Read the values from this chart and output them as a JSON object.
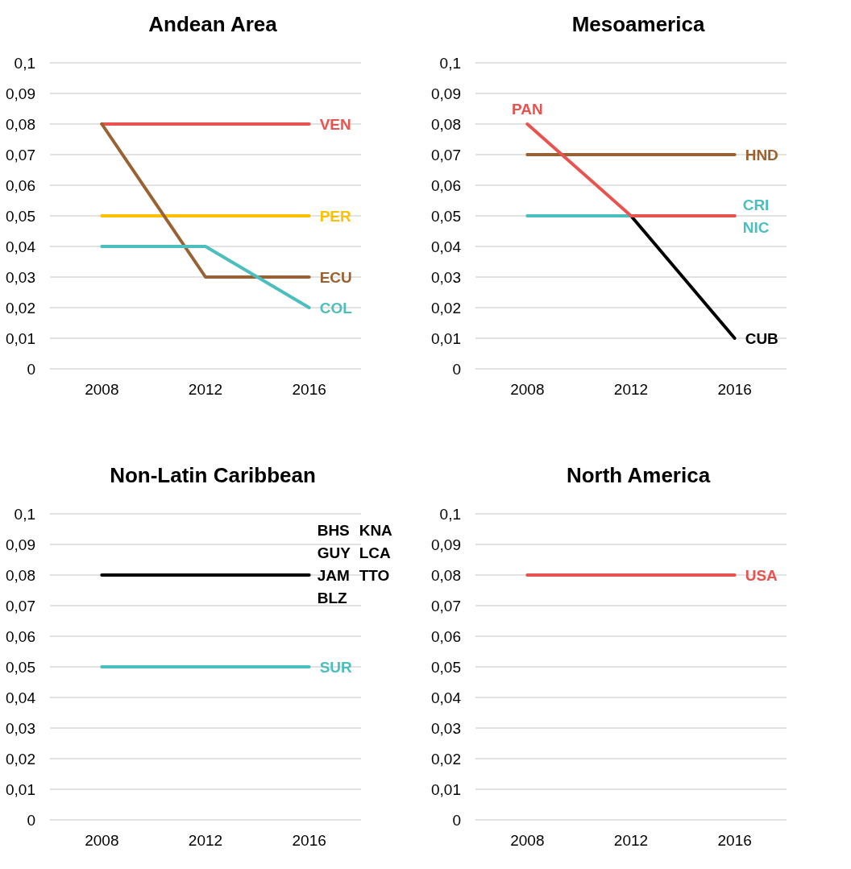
{
  "chart_data": [
    {
      "type": "line",
      "title": "Andean Area",
      "categories": [
        "2008",
        "2012",
        "2016"
      ],
      "ylim": [
        0,
        0.1
      ],
      "yticks": [
        {
          "value": 0,
          "label": "0"
        },
        {
          "value": 0.01,
          "label": "0,01"
        },
        {
          "value": 0.02,
          "label": "0,02"
        },
        {
          "value": 0.03,
          "label": "0,03"
        },
        {
          "value": 0.04,
          "label": "0,04"
        },
        {
          "value": 0.05,
          "label": "0,05"
        },
        {
          "value": 0.06,
          "label": "0,06"
        },
        {
          "value": 0.07,
          "label": "0,07"
        },
        {
          "value": 0.08,
          "label": "0,08"
        },
        {
          "value": 0.09,
          "label": "0,09"
        },
        {
          "value": 0.1,
          "label": "0,1"
        }
      ],
      "grid": "y",
      "series": [
        {
          "name": "VEN",
          "color": "#e8534f",
          "values": [
            0.08,
            0.08,
            0.08
          ]
        },
        {
          "name": "PER",
          "color": "#ffc000",
          "values": [
            0.05,
            0.05,
            0.05
          ]
        },
        {
          "name": "ECU",
          "color": "#9a6232",
          "values": [
            0.08,
            0.03,
            0.03
          ]
        },
        {
          "name": "COL",
          "color": "#4bbfbf",
          "values": [
            0.04,
            0.04,
            0.02
          ]
        }
      ]
    },
    {
      "type": "line",
      "title": "Mesoamerica",
      "categories": [
        "2008",
        "2012",
        "2016"
      ],
      "ylim": [
        0,
        0.1
      ],
      "yticks": [
        {
          "value": 0,
          "label": "0"
        },
        {
          "value": 0.01,
          "label": "0,01"
        },
        {
          "value": 0.02,
          "label": "0,02"
        },
        {
          "value": 0.03,
          "label": "0,03"
        },
        {
          "value": 0.04,
          "label": "0,04"
        },
        {
          "value": 0.05,
          "label": "0,05"
        },
        {
          "value": 0.06,
          "label": "0,06"
        },
        {
          "value": 0.07,
          "label": "0,07"
        },
        {
          "value": 0.08,
          "label": "0,08"
        },
        {
          "value": 0.09,
          "label": "0,09"
        },
        {
          "value": 0.1,
          "label": "0,1"
        }
      ],
      "grid": "y",
      "series": [
        {
          "name": "HND",
          "color": "#9a6232",
          "values": [
            0.07,
            0.07,
            0.07
          ]
        },
        {
          "name": "CUB",
          "color": "#000000",
          "values": [
            null,
            0.05,
            0.01
          ]
        },
        {
          "color": "#4bbfbf",
          "values": [
            0.05,
            0.05,
            0.05
          ]
        },
        {
          "name": "PAN",
          "color": "#e8534f",
          "values": [
            0.08,
            0.05,
            0.05
          ]
        }
      ],
      "annotations": [
        {
          "text": "CRI",
          "x": "2016",
          "y": 0.05
        },
        {
          "text": "NIC",
          "x": "2016",
          "y": 0.05
        }
      ]
    },
    {
      "type": "line",
      "title": "Non-Latin Caribbean",
      "categories": [
        "2008",
        "2012",
        "2016"
      ],
      "ylim": [
        0,
        0.1
      ],
      "yticks": [
        {
          "value": 0,
          "label": "0"
        },
        {
          "value": 0.01,
          "label": "0,01"
        },
        {
          "value": 0.02,
          "label": "0,02"
        },
        {
          "value": 0.03,
          "label": "0,03"
        },
        {
          "value": 0.04,
          "label": "0,04"
        },
        {
          "value": 0.05,
          "label": "0,05"
        },
        {
          "value": 0.06,
          "label": "0,06"
        },
        {
          "value": 0.07,
          "label": "0,07"
        },
        {
          "value": 0.08,
          "label": "0,08"
        },
        {
          "value": 0.09,
          "label": "0,09"
        },
        {
          "value": 0.1,
          "label": "0,1"
        }
      ],
      "grid": "y",
      "series": [
        {
          "color": "#000000",
          "values": [
            0.08,
            0.08,
            0.08
          ]
        },
        {
          "name": "SUR",
          "color": "#4bbfbf",
          "values": [
            0.05,
            0.05,
            0.05
          ]
        }
      ],
      "annotations": [
        "BHS",
        "KNA",
        "GUY",
        "LCA",
        "JAM",
        "TTO",
        "BLZ"
      ]
    },
    {
      "type": "line",
      "title": "North America",
      "categories": [
        "2008",
        "2012",
        "2016"
      ],
      "ylim": [
        0,
        0.1
      ],
      "yticks": [
        {
          "value": 0,
          "label": "0"
        },
        {
          "value": 0.01,
          "label": "0,01"
        },
        {
          "value": 0.02,
          "label": "0,02"
        },
        {
          "value": 0.03,
          "label": "0,03"
        },
        {
          "value": 0.04,
          "label": "0,04"
        },
        {
          "value": 0.05,
          "label": "0,05"
        },
        {
          "value": 0.06,
          "label": "0,06"
        },
        {
          "value": 0.07,
          "label": "0,07"
        },
        {
          "value": 0.08,
          "label": "0,08"
        },
        {
          "value": 0.09,
          "label": "0,09"
        },
        {
          "value": 0.1,
          "label": "0,1"
        }
      ],
      "grid": "y",
      "series": [
        {
          "name": "USA",
          "color": "#e8534f",
          "values": [
            0.08,
            0.08,
            0.08
          ]
        }
      ]
    }
  ]
}
